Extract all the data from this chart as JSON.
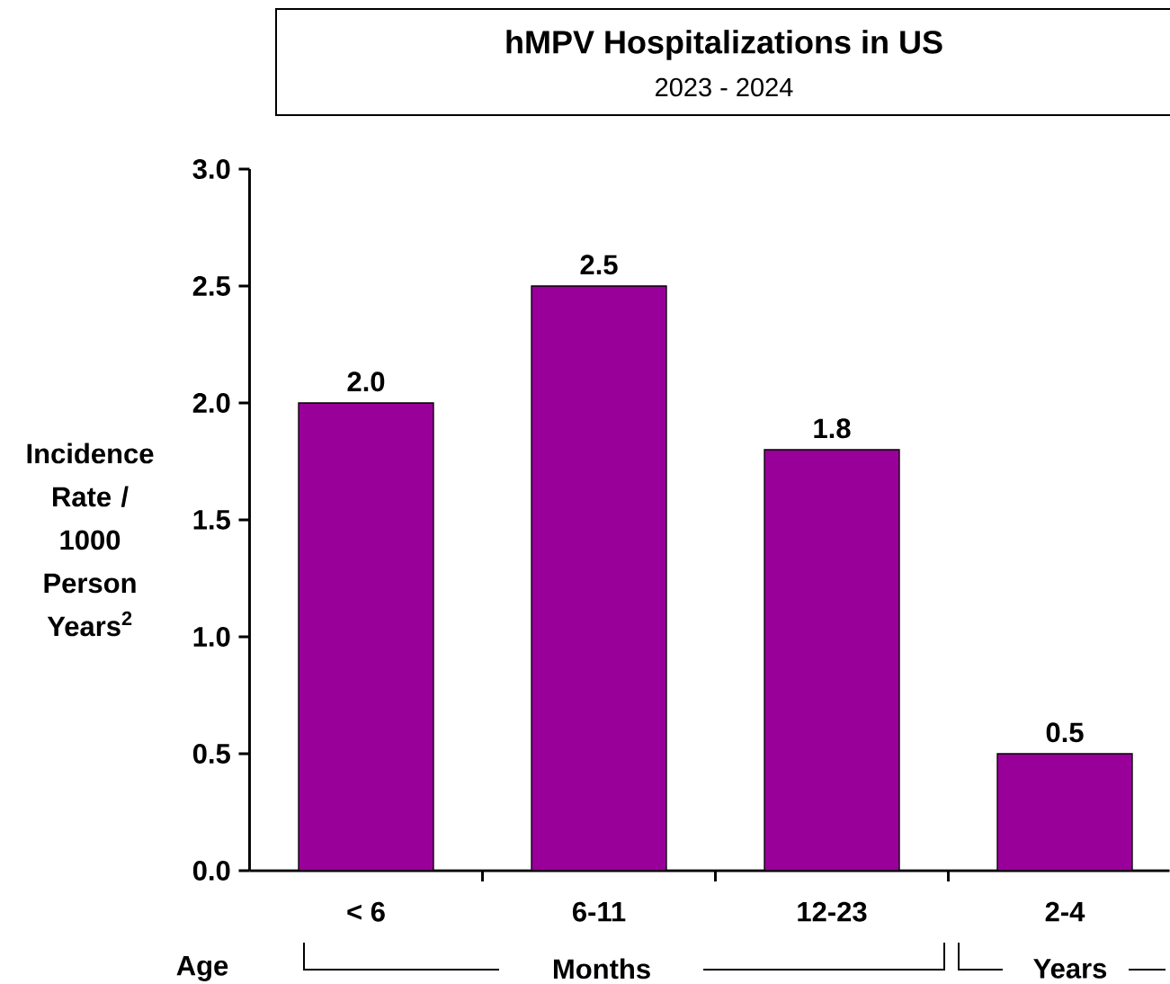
{
  "chart_data": {
    "type": "bar",
    "title": "hMPV Hospitalizations in US",
    "subtitle": "2023 -  2024",
    "ylabel": "Incidence Rate / 1000 Person Years$^{2}$",
    "categories": [
      "< 6",
      "6-11",
      "12-23",
      "2-4"
    ],
    "values": [
      2.0,
      2.5,
      1.8,
      0.5
    ],
    "value_labels": [
      "2.0",
      "2.5",
      "1.8",
      "0.5"
    ],
    "color": "#990099",
    "ylim": [
      0,
      3
    ],
    "yticks": [
      {
        "value": 0,
        "label": "0.0"
      },
      {
        "value": 0.5,
        "label": "0.5"
      },
      {
        "value": 1,
        "label": "1.0"
      },
      {
        "value": 1.5,
        "label": "1.5"
      },
      {
        "value": 2,
        "label": "2.0"
      },
      {
        "value": 2.5,
        "label": "2.5"
      },
      {
        "value": 3,
        "label": "3.0"
      }
    ],
    "grid": false,
    "annotations": [
      "Age",
      "Months",
      "Years"
    ]
  }
}
